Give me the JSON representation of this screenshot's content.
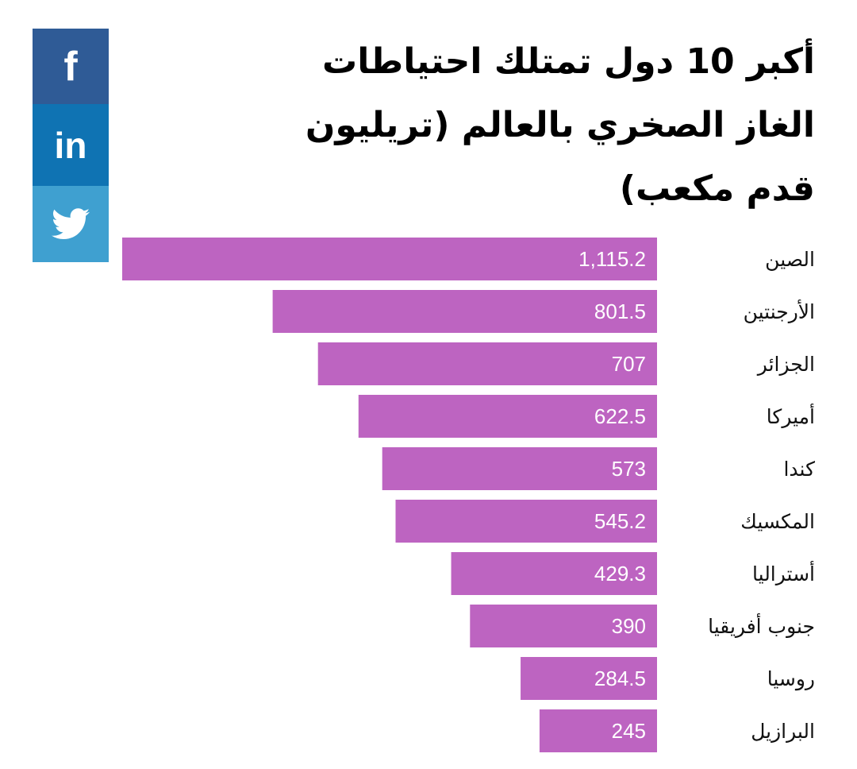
{
  "social": {
    "facebook": "f",
    "linkedin": "in",
    "twitter": "twitter-bird-icon"
  },
  "chart_data": {
    "type": "bar",
    "orientation": "horizontal",
    "title": "أكبر 10 دول تمتلك احتياطات الغاز الصخري بالعالم (تريليون قدم مكعب)",
    "categories": [
      "الصين",
      "الأرجنتين",
      "الجزائر",
      "أميركا",
      "كندا",
      "المكسيك",
      "أستراليا",
      "جنوب أفريقيا",
      "روسيا",
      "البرازيل"
    ],
    "values": [
      1115.2,
      801.5,
      707,
      622.5,
      573,
      545.2,
      429.3,
      390,
      284.5,
      245
    ],
    "value_labels": [
      "1,115.2",
      "801.5",
      "707",
      "622.5",
      "573",
      "545.2",
      "429.3",
      "390",
      "284.5",
      "245"
    ],
    "bar_color": "#bd64c1",
    "xlim": [
      0,
      1115.2
    ],
    "grid": false
  }
}
